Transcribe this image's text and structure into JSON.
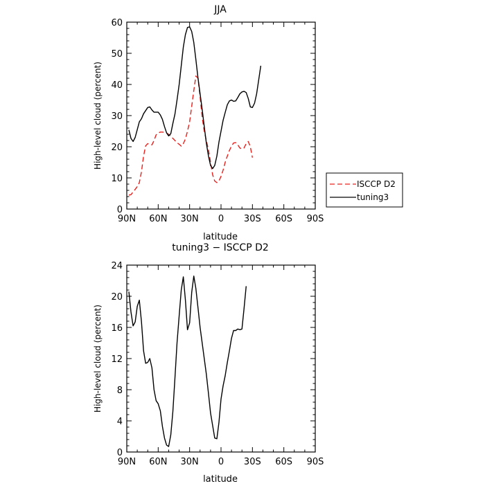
{
  "chart_data": [
    {
      "type": "line",
      "title": "JJA",
      "xlabel": "latitude",
      "ylabel": "High-level cloud (percent)",
      "xlim": [
        90,
        -90
      ],
      "ylim": [
        0,
        60
      ],
      "x_ticks": [
        90,
        60,
        30,
        0,
        -30,
        -60,
        -90
      ],
      "x_tick_labels": [
        "90N",
        "60N",
        "30N",
        "0",
        "30S",
        "60S",
        "90S"
      ],
      "y_ticks": [
        0,
        10,
        20,
        30,
        40,
        50,
        60
      ],
      "y_tick_labels": [
        "0",
        "10",
        "20",
        "30",
        "40",
        "50",
        "60"
      ],
      "legend_position": "right",
      "series": [
        {
          "name": "ISCCP D2",
          "color": "#e8201c",
          "dash": "dashed",
          "points": [
            [
              88,
              4.5
            ],
            [
              86,
              4.6
            ],
            [
              84,
              5.5
            ],
            [
              82,
              6.3
            ],
            [
              80,
              7.2
            ],
            [
              78,
              8.5
            ],
            [
              76,
              12
            ],
            [
              74,
              17
            ],
            [
              72,
              20.3
            ],
            [
              70,
              21
            ],
            [
              68,
              20.8
            ],
            [
              66,
              20.6
            ],
            [
              64,
              22
            ],
            [
              62,
              23.8
            ],
            [
              60,
              24.4
            ],
            [
              58,
              24.7
            ],
            [
              56,
              24.7
            ],
            [
              54,
              24.6
            ],
            [
              52,
              24.4
            ],
            [
              50,
              24
            ],
            [
              48,
              23.4
            ],
            [
              46,
              22.7
            ],
            [
              44,
              22
            ],
            [
              42,
              21.3
            ],
            [
              40,
              20.8
            ],
            [
              38,
              20.2
            ],
            [
              36,
              21
            ],
            [
              34,
              22.5
            ],
            [
              32,
              25
            ],
            [
              30,
              28
            ],
            [
              28,
              33
            ],
            [
              26,
              38
            ],
            [
              24,
              42.7
            ],
            [
              22,
              42
            ],
            [
              20,
              36
            ],
            [
              18,
              29.5
            ],
            [
              16,
              25
            ],
            [
              14,
              22
            ],
            [
              12,
              19
            ],
            [
              10,
              15
            ],
            [
              8,
              11
            ],
            [
              6,
              9
            ],
            [
              4,
              8.5
            ],
            [
              2,
              9
            ],
            [
              0,
              10.5
            ],
            [
              -2,
              12.5
            ],
            [
              -4,
              15
            ],
            [
              -6,
              17
            ],
            [
              -8,
              18.8
            ],
            [
              -10,
              20.2
            ],
            [
              -12,
              21.2
            ],
            [
              -14,
              21.3
            ],
            [
              -16,
              20.6
            ],
            [
              -18,
              19.6
            ],
            [
              -20,
              19.3
            ],
            [
              -22,
              19.6
            ],
            [
              -24,
              21
            ],
            [
              -26,
              21.7
            ],
            [
              -28,
              20
            ],
            [
              -30,
              16.5
            ]
          ]
        },
        {
          "name": "tuning3",
          "color": "#000000",
          "dash": "solid",
          "points": [
            [
              88,
              25.4
            ],
            [
              86,
              22.7
            ],
            [
              84,
              21.7
            ],
            [
              82,
              23
            ],
            [
              80,
              25.5
            ],
            [
              78,
              28
            ],
            [
              76,
              29
            ],
            [
              74,
              30.6
            ],
            [
              72,
              31.6
            ],
            [
              70,
              32.6
            ],
            [
              68,
              32.8
            ],
            [
              66,
              31.8
            ],
            [
              64,
              31.1
            ],
            [
              62,
              31.1
            ],
            [
              60,
              31.1
            ],
            [
              58,
              30.2
            ],
            [
              56,
              28.8
            ],
            [
              54,
              26.5
            ],
            [
              52,
              24.5
            ],
            [
              50,
              23.5
            ],
            [
              48,
              24.2
            ],
            [
              46,
              27.5
            ],
            [
              44,
              30.5
            ],
            [
              42,
              35
            ],
            [
              40,
              40
            ],
            [
              38,
              46
            ],
            [
              36,
              52
            ],
            [
              34,
              56
            ],
            [
              32,
              58.3
            ],
            [
              30,
              58.5
            ],
            [
              28,
              57
            ],
            [
              26,
              53.5
            ],
            [
              24,
              48
            ],
            [
              22,
              42
            ],
            [
              20,
              37
            ],
            [
              18,
              32
            ],
            [
              16,
              26.5
            ],
            [
              14,
              21.2
            ],
            [
              12,
              17
            ],
            [
              10,
              14
            ],
            [
              8,
              13
            ],
            [
              6,
              14
            ],
            [
              4,
              17
            ],
            [
              2,
              21.5
            ],
            [
              0,
              25
            ],
            [
              -2,
              28.5
            ],
            [
              -4,
              31
            ],
            [
              -6,
              33.5
            ],
            [
              -8,
              34.7
            ],
            [
              -10,
              35
            ],
            [
              -12,
              34.6
            ],
            [
              -14,
              34.7
            ],
            [
              -16,
              35.8
            ],
            [
              -18,
              37
            ],
            [
              -20,
              37.6
            ],
            [
              -22,
              37.8
            ],
            [
              -24,
              37.4
            ],
            [
              -26,
              35.5
            ],
            [
              -28,
              32.8
            ],
            [
              -30,
              32.6
            ],
            [
              -32,
              34
            ],
            [
              -34,
              37
            ],
            [
              -36,
              41.5
            ],
            [
              -38,
              46
            ]
          ]
        }
      ]
    },
    {
      "type": "line",
      "title": "tuning3 − ISCCP D2",
      "xlabel": "latitude",
      "ylabel": "High-level cloud (percent)",
      "xlim": [
        90,
        -90
      ],
      "ylim": [
        0,
        24
      ],
      "x_ticks": [
        90,
        60,
        30,
        0,
        -30,
        -60,
        -90
      ],
      "x_tick_labels": [
        "90N",
        "60N",
        "30N",
        "0",
        "30S",
        "60S",
        "90S"
      ],
      "y_ticks": [
        0,
        4,
        8,
        12,
        16,
        20,
        24
      ],
      "y_tick_labels": [
        "0",
        "4",
        "8",
        "12",
        "16",
        "20",
        "24"
      ],
      "series": [
        {
          "color": "#000000",
          "dash": "solid",
          "points": [
            [
              88,
              20.6
            ],
            [
              86,
              18
            ],
            [
              84,
              16.2
            ],
            [
              82,
              16.7
            ],
            [
              80,
              18.7
            ],
            [
              78,
              19.5
            ],
            [
              76,
              16.7
            ],
            [
              74,
              13
            ],
            [
              72,
              11.4
            ],
            [
              70,
              11.5
            ],
            [
              68,
              12
            ],
            [
              66,
              10.8
            ],
            [
              64,
              8
            ],
            [
              62,
              6.6
            ],
            [
              60,
              6.2
            ],
            [
              58,
              5.3
            ],
            [
              56,
              3.3
            ],
            [
              54,
              1.8
            ],
            [
              52,
              0.9
            ],
            [
              50,
              0.7
            ],
            [
              48,
              2.2
            ],
            [
              46,
              5.2
            ],
            [
              44,
              9.5
            ],
            [
              42,
              14
            ],
            [
              40,
              17.5
            ],
            [
              38,
              20.8
            ],
            [
              36,
              22.5
            ],
            [
              34,
              19.5
            ],
            [
              32,
              15.7
            ],
            [
              30,
              16.6
            ],
            [
              28,
              20.5
            ],
            [
              26,
              22.6
            ],
            [
              24,
              21
            ],
            [
              22,
              18.5
            ],
            [
              20,
              16
            ],
            [
              18,
              14
            ],
            [
              16,
              12
            ],
            [
              14,
              10
            ],
            [
              12,
              7.5
            ],
            [
              10,
              5
            ],
            [
              8,
              3.4
            ],
            [
              6,
              1.8
            ],
            [
              4,
              1.7
            ],
            [
              2,
              3.8
            ],
            [
              0,
              6.8
            ],
            [
              -2,
              8.5
            ],
            [
              -4,
              9.8
            ],
            [
              -6,
              11.5
            ],
            [
              -8,
              13
            ],
            [
              -10,
              14.6
            ],
            [
              -12,
              15.6
            ],
            [
              -14,
              15.6
            ],
            [
              -16,
              15.8
            ],
            [
              -18,
              15.7
            ],
            [
              -20,
              15.8
            ],
            [
              -22,
              18.4
            ],
            [
              -24,
              21.3
            ]
          ]
        }
      ]
    }
  ]
}
